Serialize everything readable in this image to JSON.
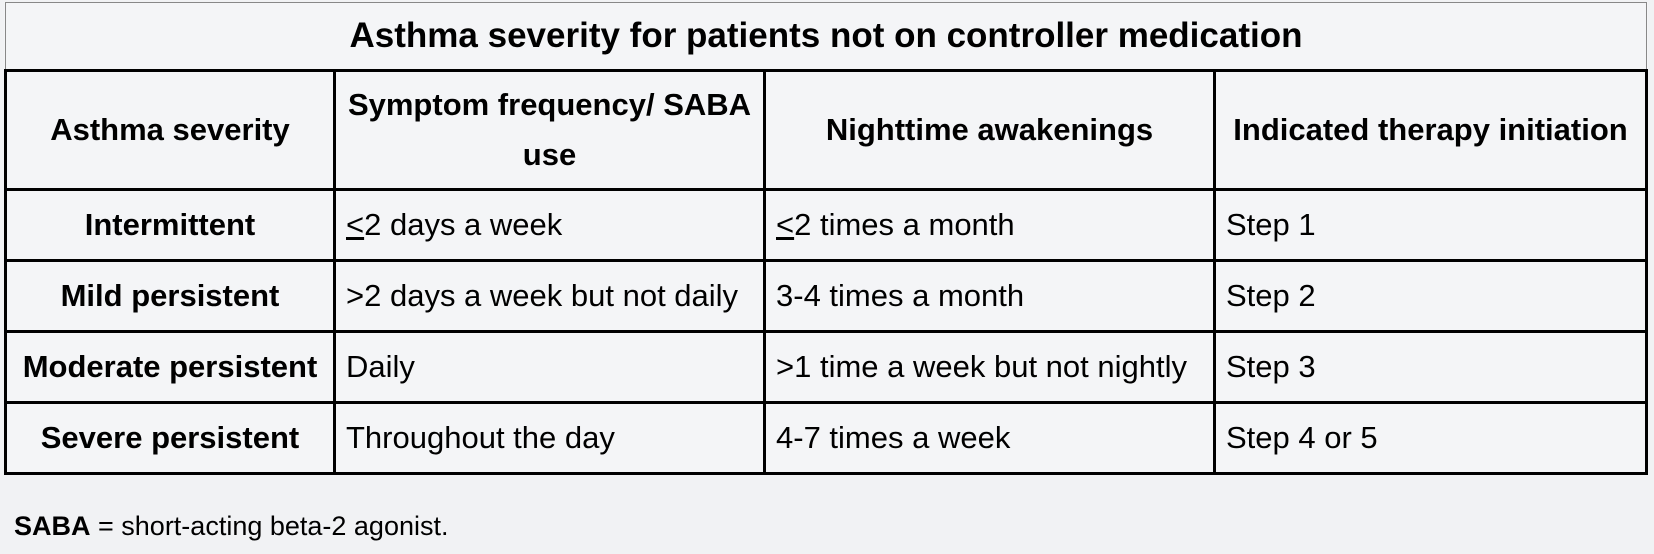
{
  "table": {
    "title": "Asthma severity for patients not on controller medication",
    "headers": [
      "Asthma severity",
      "Symptom frequency/ SABA use",
      "Nighttime awakenings",
      "Indicated therapy initiation"
    ],
    "rows": [
      {
        "severity": "Intermittent",
        "symptom_prefix": "<",
        "symptom": "2 days a week",
        "night_prefix": "<",
        "night": "2 times a month",
        "therapy": "Step 1"
      },
      {
        "severity": "Mild persistent",
        "symptom_prefix": "",
        "symptom": ">2 days a week but not daily",
        "night_prefix": "",
        "night": "3-4 times a month",
        "therapy": "Step 2"
      },
      {
        "severity": "Moderate persistent",
        "symptom_prefix": "",
        "symptom": "Daily",
        "night_prefix": "",
        "night": ">1 time a week but not nightly",
        "therapy": "Step 3"
      },
      {
        "severity": "Severe persistent",
        "symptom_prefix": "",
        "symptom": "Throughout the day",
        "night_prefix": "",
        "night": "4-7 times a week",
        "therapy": "Step 4 or 5"
      }
    ]
  },
  "footnote": {
    "term": "SABA",
    "definition": " = short-acting beta-2 agonist."
  }
}
